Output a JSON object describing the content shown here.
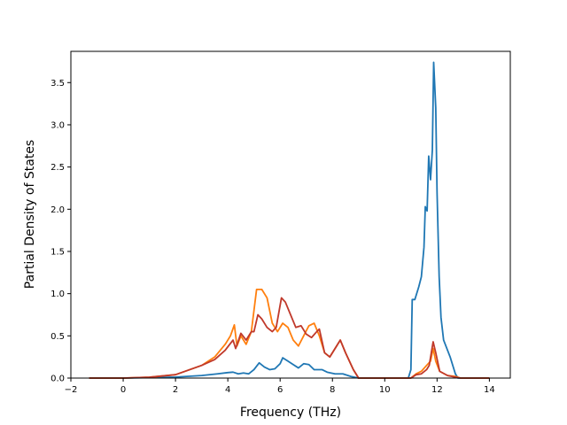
{
  "chart_data": {
    "type": "line",
    "title": "",
    "xlabel": "Frequency (THz)",
    "ylabel": "Partial Density of States",
    "xlim": [
      -2,
      14.8
    ],
    "ylim": [
      0,
      3.87
    ],
    "xticks": [
      -2,
      0,
      2,
      4,
      6,
      8,
      10,
      12,
      14
    ],
    "yticks": [
      0.0,
      0.5,
      1.0,
      1.5,
      2.0,
      2.5,
      3.0,
      3.5
    ],
    "xtick_labels": [
      "−2",
      "0",
      "2",
      "4",
      "6",
      "8",
      "10",
      "12",
      "14"
    ],
    "ytick_labels": [
      "0.0",
      "0.5",
      "1.0",
      "1.5",
      "2.0",
      "2.5",
      "3.0",
      "3.5"
    ],
    "grid": false,
    "legend": "none",
    "series": [
      {
        "color": "#1f77b4",
        "points": [
          [
            -1.3,
            0
          ],
          [
            0,
            0
          ],
          [
            1,
            0.005
          ],
          [
            2,
            0.012
          ],
          [
            3,
            0.03
          ],
          [
            3.6,
            0.05
          ],
          [
            4,
            0.065
          ],
          [
            4.2,
            0.07
          ],
          [
            4.4,
            0.05
          ],
          [
            4.6,
            0.06
          ],
          [
            4.8,
            0.05
          ],
          [
            5,
            0.1
          ],
          [
            5.2,
            0.18
          ],
          [
            5.4,
            0.13
          ],
          [
            5.6,
            0.1
          ],
          [
            5.8,
            0.11
          ],
          [
            6,
            0.17
          ],
          [
            6.1,
            0.24
          ],
          [
            6.3,
            0.2
          ],
          [
            6.5,
            0.16
          ],
          [
            6.7,
            0.12
          ],
          [
            6.9,
            0.17
          ],
          [
            7.1,
            0.16
          ],
          [
            7.3,
            0.1
          ],
          [
            7.6,
            0.1
          ],
          [
            7.8,
            0.07
          ],
          [
            8.1,
            0.05
          ],
          [
            8.4,
            0.05
          ],
          [
            8.7,
            0.02
          ],
          [
            9,
            0
          ],
          [
            10.9,
            0
          ],
          [
            11.0,
            0.1
          ],
          [
            11.05,
            0.93
          ],
          [
            11.15,
            0.93
          ],
          [
            11.3,
            1.08
          ],
          [
            11.4,
            1.2
          ],
          [
            11.5,
            1.55
          ],
          [
            11.55,
            2.03
          ],
          [
            11.62,
            1.98
          ],
          [
            11.68,
            2.63
          ],
          [
            11.75,
            2.35
          ],
          [
            11.82,
            2.7
          ],
          [
            11.87,
            3.74
          ],
          [
            11.95,
            3.2
          ],
          [
            12.0,
            2.2
          ],
          [
            12.08,
            1.2
          ],
          [
            12.15,
            0.72
          ],
          [
            12.25,
            0.45
          ],
          [
            12.5,
            0.25
          ],
          [
            12.7,
            0.05
          ],
          [
            12.8,
            0
          ],
          [
            14,
            0
          ]
        ]
      },
      {
        "color": "#ff7f0e",
        "points": [
          [
            -1.3,
            0
          ],
          [
            0,
            0
          ],
          [
            1,
            0.01
          ],
          [
            2,
            0.04
          ],
          [
            3,
            0.15
          ],
          [
            3.5,
            0.25
          ],
          [
            3.9,
            0.4
          ],
          [
            4.1,
            0.5
          ],
          [
            4.25,
            0.63
          ],
          [
            4.35,
            0.38
          ],
          [
            4.5,
            0.5
          ],
          [
            4.7,
            0.4
          ],
          [
            4.9,
            0.55
          ],
          [
            5.1,
            1.05
          ],
          [
            5.3,
            1.05
          ],
          [
            5.5,
            0.95
          ],
          [
            5.7,
            0.65
          ],
          [
            5.9,
            0.55
          ],
          [
            6.1,
            0.65
          ],
          [
            6.3,
            0.6
          ],
          [
            6.5,
            0.45
          ],
          [
            6.7,
            0.38
          ],
          [
            6.9,
            0.5
          ],
          [
            7.1,
            0.62
          ],
          [
            7.3,
            0.65
          ],
          [
            7.5,
            0.5
          ],
          [
            7.7,
            0.3
          ],
          [
            7.9,
            0.25
          ],
          [
            8.1,
            0.35
          ],
          [
            8.3,
            0.45
          ],
          [
            8.5,
            0.3
          ],
          [
            8.8,
            0.1
          ],
          [
            9,
            0
          ],
          [
            11,
            0
          ],
          [
            11.2,
            0.05
          ],
          [
            11.4,
            0.08
          ],
          [
            11.6,
            0.15
          ],
          [
            11.75,
            0.2
          ],
          [
            11.85,
            0.35
          ],
          [
            11.95,
            0.2
          ],
          [
            12.1,
            0.08
          ],
          [
            12.4,
            0.03
          ],
          [
            12.7,
            0.02
          ],
          [
            12.9,
            0
          ],
          [
            14,
            0
          ]
        ]
      },
      {
        "color": "#c0392b",
        "points": [
          [
            -1.3,
            0
          ],
          [
            0,
            0
          ],
          [
            1,
            0.01
          ],
          [
            2,
            0.04
          ],
          [
            3,
            0.15
          ],
          [
            3.5,
            0.22
          ],
          [
            3.9,
            0.33
          ],
          [
            4.2,
            0.45
          ],
          [
            4.3,
            0.35
          ],
          [
            4.5,
            0.53
          ],
          [
            4.7,
            0.45
          ],
          [
            4.9,
            0.55
          ],
          [
            5.0,
            0.55
          ],
          [
            5.15,
            0.75
          ],
          [
            5.3,
            0.7
          ],
          [
            5.5,
            0.6
          ],
          [
            5.7,
            0.55
          ],
          [
            5.85,
            0.6
          ],
          [
            6.05,
            0.95
          ],
          [
            6.2,
            0.9
          ],
          [
            6.4,
            0.75
          ],
          [
            6.6,
            0.6
          ],
          [
            6.8,
            0.62
          ],
          [
            7.0,
            0.52
          ],
          [
            7.2,
            0.48
          ],
          [
            7.4,
            0.55
          ],
          [
            7.5,
            0.58
          ],
          [
            7.7,
            0.3
          ],
          [
            7.9,
            0.25
          ],
          [
            8.1,
            0.35
          ],
          [
            8.3,
            0.45
          ],
          [
            8.5,
            0.3
          ],
          [
            8.8,
            0.1
          ],
          [
            9,
            0
          ],
          [
            11,
            0
          ],
          [
            11.2,
            0.04
          ],
          [
            11.4,
            0.05
          ],
          [
            11.6,
            0.1
          ],
          [
            11.7,
            0.15
          ],
          [
            11.85,
            0.43
          ],
          [
            11.95,
            0.3
          ],
          [
            12.1,
            0.08
          ],
          [
            12.4,
            0.03
          ],
          [
            12.7,
            0.01
          ],
          [
            12.9,
            0
          ],
          [
            14,
            0
          ]
        ]
      }
    ]
  }
}
